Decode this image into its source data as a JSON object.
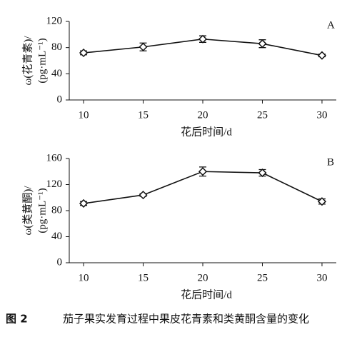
{
  "chart_data": [
    {
      "type": "line",
      "panel": "A",
      "y_label": [
        "ω(花青素)/",
        "(pg·mL⁻¹)"
      ],
      "x_label": "花后时间/d",
      "x": [
        10,
        15,
        20,
        25,
        30
      ],
      "xlim": [
        8.8,
        31.2
      ],
      "xticks": [
        10,
        15,
        20,
        25,
        30
      ],
      "ylim": [
        0,
        120
      ],
      "yticks": [
        0,
        40,
        80,
        120
      ],
      "grid": false,
      "color": "#111111",
      "series": [
        {
          "values": [
            72,
            81,
            93,
            86,
            68
          ],
          "errors": [
            3,
            6,
            5,
            6,
            2
          ]
        }
      ]
    },
    {
      "type": "line",
      "panel": "B",
      "y_label": [
        "ω(类黄酮)/",
        "(pg·mL⁻¹)"
      ],
      "x_label": "花后时间/d",
      "x": [
        10,
        15,
        20,
        25,
        30
      ],
      "xlim": [
        8.8,
        31.2
      ],
      "xticks": [
        10,
        15,
        20,
        25,
        30
      ],
      "ylim": [
        0,
        160
      ],
      "yticks": [
        0,
        40,
        80,
        120,
        160
      ],
      "grid": false,
      "color": "#111111",
      "series": [
        {
          "values": [
            91,
            104,
            140,
            138,
            94
          ],
          "errors": [
            3,
            2,
            7,
            5,
            4
          ]
        }
      ]
    }
  ],
  "caption": {
    "label": "图 2",
    "text": "茄子果实发育过程中果皮花青素和类黄酮含量的变化"
  }
}
